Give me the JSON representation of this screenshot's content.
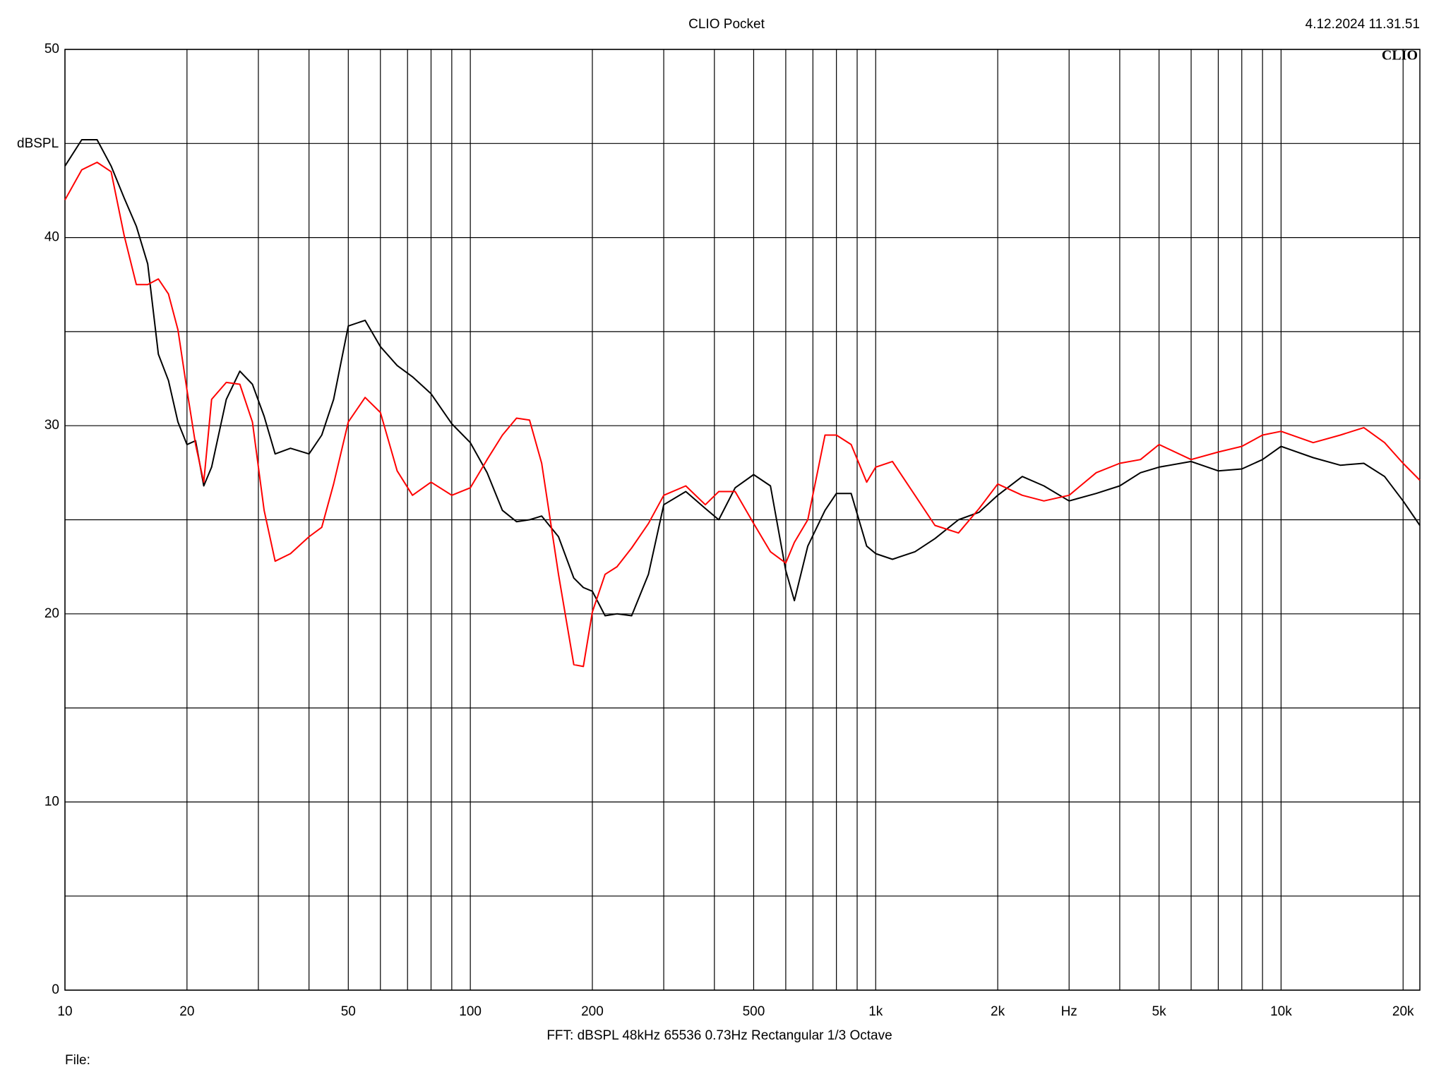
{
  "chart_data": {
    "type": "line",
    "title": "CLIO Pocket",
    "timestamp": "4.12.2024 11.31.51",
    "logo": "CLIO",
    "ylabel": "dBSPL",
    "footer": "FFT:  dBSPL  48kHz  65536  0.73Hz  Rectangular  1/3 Octave",
    "file_label": "File:",
    "log_x": true,
    "grid": true,
    "xlim": [
      10,
      22000
    ],
    "ylim": [
      0,
      50
    ],
    "yticks": [
      0,
      10,
      20,
      30,
      40,
      50
    ],
    "yminor": [
      5,
      15,
      25,
      35,
      45
    ],
    "xticks": [
      10,
      20,
      50,
      100,
      200,
      500,
      {
        "value": 1000,
        "label": "1k"
      },
      {
        "value": 2000,
        "label": "2k"
      },
      {
        "value": 3000,
        "label": "Hz"
      },
      {
        "value": 5000,
        "label": "5k"
      },
      {
        "value": 10000,
        "label": "10k"
      },
      {
        "value": 20000,
        "label": "20k"
      }
    ],
    "xminor": [
      30,
      40,
      60,
      70,
      80,
      90,
      300,
      400,
      600,
      700,
      800,
      900,
      4000,
      6000,
      7000,
      8000,
      9000
    ],
    "x": [
      10,
      11,
      12,
      13,
      14,
      15,
      16,
      17,
      18,
      19,
      20,
      21,
      22,
      23,
      25,
      27,
      29,
      31,
      33,
      36,
      40,
      43,
      46,
      50,
      55,
      60,
      66,
      72,
      80,
      90,
      100,
      110,
      120,
      130,
      140,
      150,
      165,
      180,
      190,
      200,
      215,
      230,
      250,
      275,
      300,
      340,
      380,
      410,
      450,
      500,
      550,
      600,
      630,
      680,
      750,
      800,
      870,
      950,
      1000,
      1100,
      1250,
      1400,
      1600,
      1800,
      2000,
      2300,
      2600,
      3000,
      3500,
      4000,
      4500,
      5000,
      6000,
      7000,
      8000,
      9000,
      10000,
      12000,
      14000,
      16000,
      18000,
      20000,
      22000
    ],
    "series": [
      {
        "color": "#000000",
        "values": [
          43.8,
          45.2,
          45.2,
          43.8,
          42.1,
          40.6,
          38.6,
          33.8,
          32.4,
          30.2,
          29.0,
          29.2,
          26.8,
          27.8,
          31.4,
          32.9,
          32.2,
          30.5,
          28.5,
          28.8,
          28.5,
          29.5,
          31.4,
          35.3,
          35.6,
          34.2,
          33.2,
          32.6,
          31.7,
          30.1,
          29.1,
          27.5,
          25.5,
          24.9,
          25.0,
          25.2,
          24.1,
          21.9,
          21.4,
          21.2,
          19.9,
          20.0,
          19.9,
          22.1,
          25.8,
          26.5,
          25.6,
          25.0,
          26.7,
          27.4,
          26.8,
          22.3,
          20.7,
          23.6,
          25.5,
          26.4,
          26.4,
          23.6,
          23.2,
          22.9,
          23.3,
          24.0,
          25.0,
          25.4,
          26.3,
          27.3,
          26.8,
          26.0,
          26.4,
          26.8,
          27.5,
          27.8,
          28.1,
          27.6,
          27.7,
          28.2,
          28.9,
          28.3,
          27.9,
          28.0,
          27.3,
          26.0,
          24.7
        ]
      },
      {
        "color": "#ff0000",
        "values": [
          42.0,
          43.6,
          44.0,
          43.5,
          40.1,
          37.5,
          37.5,
          37.8,
          37.0,
          35.1,
          31.9,
          29.0,
          27.0,
          31.4,
          32.3,
          32.2,
          30.2,
          25.5,
          22.8,
          23.2,
          24.1,
          24.6,
          26.9,
          30.2,
          31.5,
          30.7,
          27.6,
          26.3,
          27.0,
          26.3,
          26.7,
          28.2,
          29.5,
          30.4,
          30.3,
          28.0,
          22.1,
          17.3,
          17.2,
          20.1,
          22.1,
          22.5,
          23.5,
          24.8,
          26.3,
          26.8,
          25.8,
          26.5,
          26.5,
          24.8,
          23.3,
          22.7,
          23.8,
          25.0,
          29.5,
          29.5,
          29.0,
          27.0,
          27.8,
          28.1,
          26.3,
          24.7,
          24.3,
          25.6,
          26.9,
          26.3,
          26.0,
          26.3,
          27.5,
          28.0,
          28.2,
          29.0,
          28.2,
          28.6,
          28.9,
          29.5,
          29.7,
          29.1,
          29.5,
          29.9,
          29.1,
          28.0,
          27.1
        ]
      }
    ]
  }
}
